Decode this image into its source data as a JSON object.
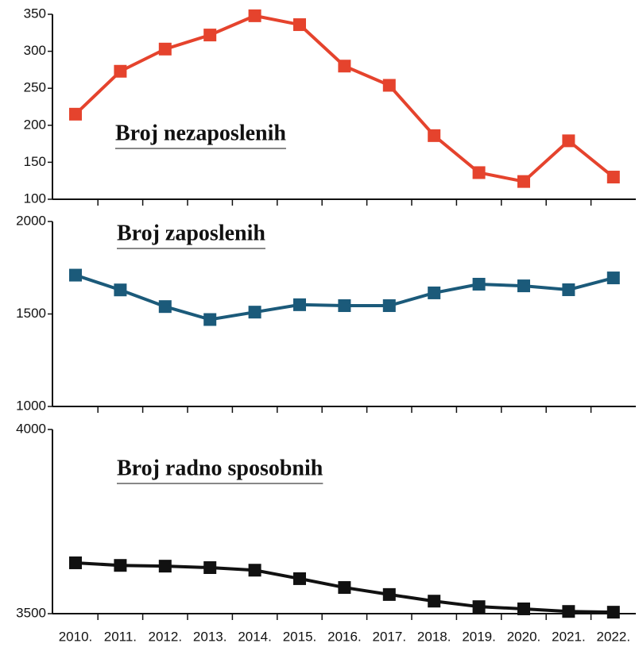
{
  "chart_data": [
    {
      "type": "line",
      "title": "Broj nezaposlenih",
      "color": "#e5432d",
      "values": [
        215,
        273,
        303,
        322,
        348,
        336,
        280,
        254,
        186,
        136,
        124,
        179,
        130
      ],
      "ylim": [
        100,
        350
      ],
      "yticks": [
        100,
        150,
        200,
        250,
        300,
        350
      ]
    },
    {
      "type": "line",
      "title": "Broj zaposlenih",
      "color": "#1b5a7a",
      "values": [
        1710,
        1630,
        1540,
        1470,
        1510,
        1550,
        1545,
        1545,
        1614,
        1661,
        1652,
        1631,
        1695
      ],
      "ylim": [
        1000,
        2000
      ],
      "yticks": [
        1000,
        1500,
        2000
      ]
    },
    {
      "type": "line",
      "title": "Broj radno sposobnih",
      "color": "#111111",
      "categories": [
        "2010.",
        "2011.",
        "2012.",
        "2013.",
        "2014.",
        "2015.",
        "2016.",
        "2017.",
        "2018.",
        "2019.",
        "2020.",
        "2021.",
        "2022."
      ],
      "values": [
        3638,
        3631,
        3629,
        3625,
        3618,
        3595,
        3571,
        3552,
        3534,
        3519,
        3513,
        3506,
        3504
      ],
      "ylim": [
        3500,
        4000
      ],
      "yticks": [
        3500,
        4000
      ]
    }
  ]
}
